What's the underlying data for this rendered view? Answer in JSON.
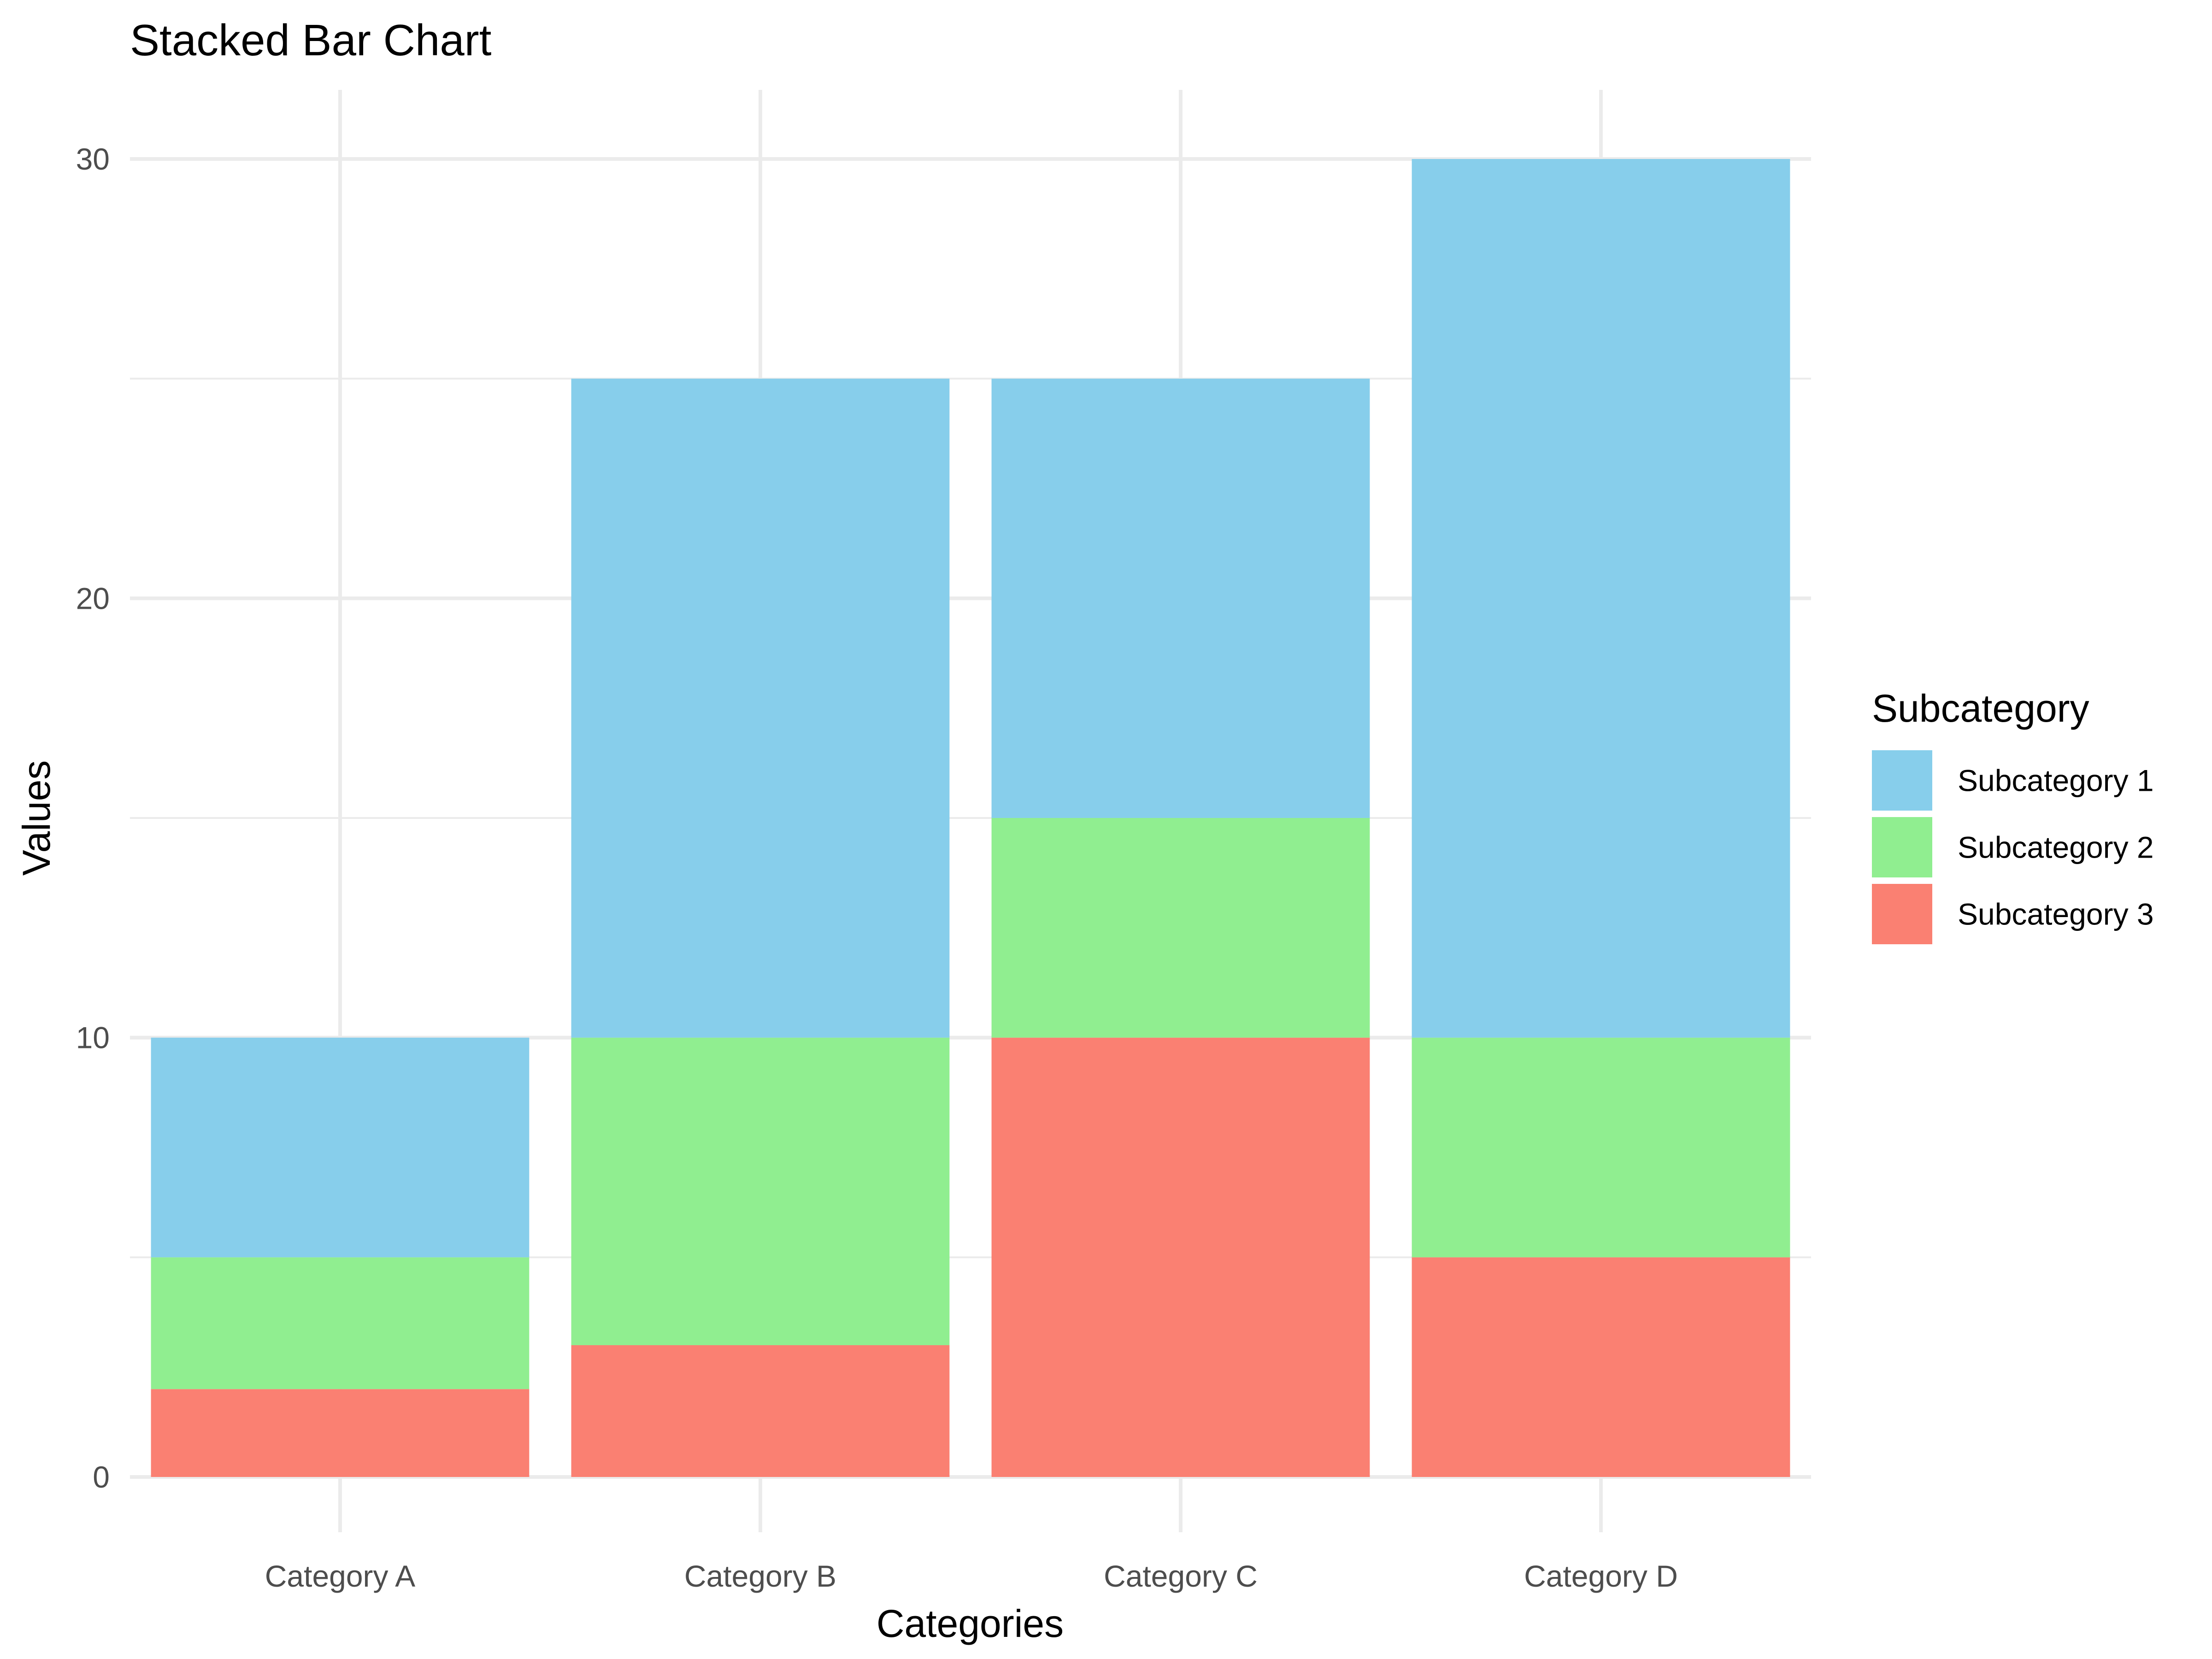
{
  "chart_data": {
    "type": "bar",
    "stacked": true,
    "title": "Stacked Bar Chart",
    "xlabel": "Categories",
    "ylabel": "Values",
    "categories": [
      "Category A",
      "Category B",
      "Category C",
      "Category D"
    ],
    "ylim": [
      0,
      31.5
    ],
    "yticks": [
      0,
      10,
      20,
      30
    ],
    "grid": true,
    "legend_title": "Subcategory",
    "legend_position": "right",
    "series": [
      {
        "name": "Subcategory 3",
        "color": "#FA8072",
        "values": [
          2,
          3,
          10,
          5
        ]
      },
      {
        "name": "Subcategory 2",
        "color": "#90EE90",
        "values": [
          3,
          7,
          5,
          5
        ]
      },
      {
        "name": "Subcategory 1",
        "color": "#87CEEB",
        "values": [
          5,
          15,
          10,
          20
        ]
      }
    ],
    "legend_order": [
      "Subcategory 1",
      "Subcategory 2",
      "Subcategory 3"
    ]
  }
}
